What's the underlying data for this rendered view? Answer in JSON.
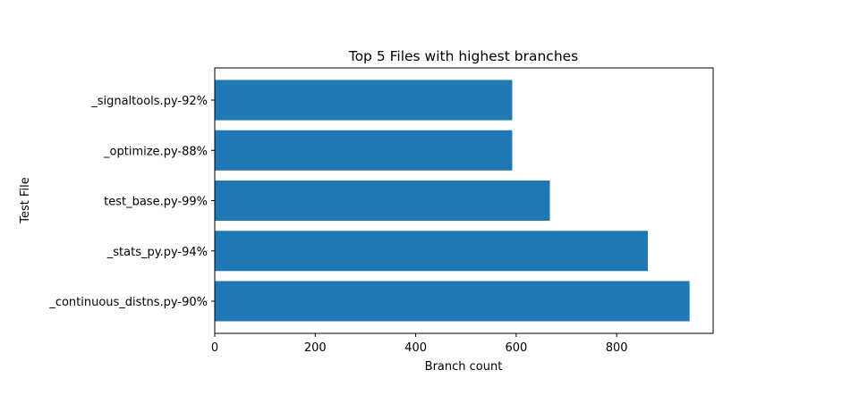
{
  "chart_data": {
    "type": "bar",
    "orientation": "horizontal",
    "title": "Top 5 Files with highest branches",
    "xlabel": "Branch count",
    "ylabel": "Test File",
    "categories": [
      "_continuous_distns.py-90%",
      "_stats_py.py-94%",
      "test_base.py-99%",
      "_optimize.py-88%",
      "_signaltools.py-92%"
    ],
    "values": [
      945,
      862,
      667,
      592,
      592
    ],
    "xlim": [
      0,
      992
    ],
    "xticks": [
      0,
      200,
      400,
      600,
      800
    ],
    "grid": false,
    "bar_color": "#1f77b4"
  }
}
